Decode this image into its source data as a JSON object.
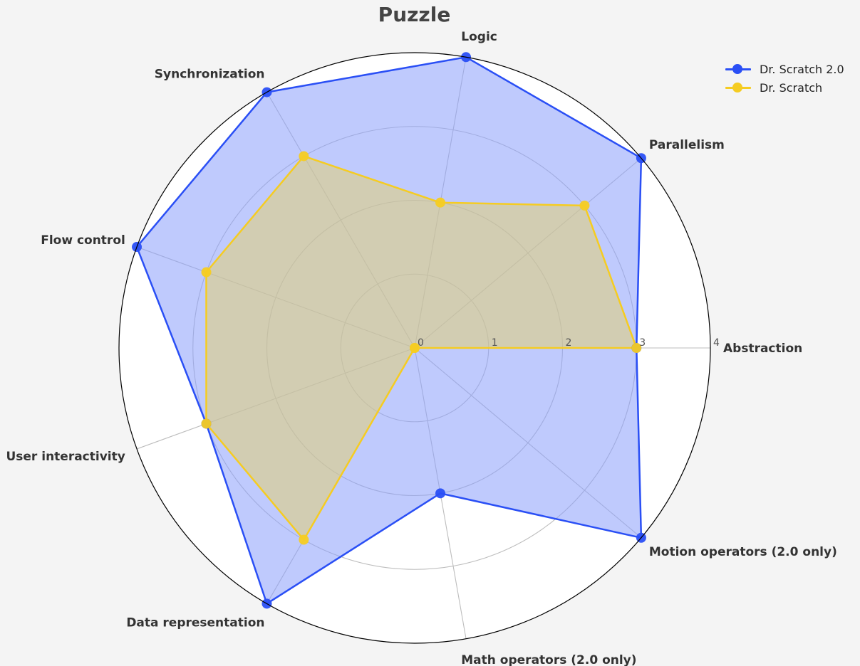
{
  "chart_data": {
    "type": "radar",
    "title": "Puzzle",
    "axes": [
      "Abstraction",
      "Parallelism",
      "Logic",
      "Synchronization",
      "Flow control",
      "User interactivity",
      "Data representation",
      "Math operators (2.0 only)",
      "Motion operators (2.0 only)"
    ],
    "radial_ticks": [
      "0",
      "1",
      "2",
      "3",
      "4"
    ],
    "rlim": [
      0,
      4
    ],
    "grid": true,
    "legend_position": "top-right",
    "series": [
      {
        "name": "Dr. Scratch 2.0",
        "color": "#2a4ff5",
        "fill": "#8a9efc",
        "values": [
          3,
          4,
          4,
          4,
          4,
          3,
          4,
          2,
          4
        ]
      },
      {
        "name": "Dr. Scratch",
        "color": "#f5cc22",
        "fill": "#e1cf74",
        "values": [
          3,
          3,
          2,
          3,
          3,
          3,
          3,
          0,
          0
        ]
      }
    ]
  }
}
